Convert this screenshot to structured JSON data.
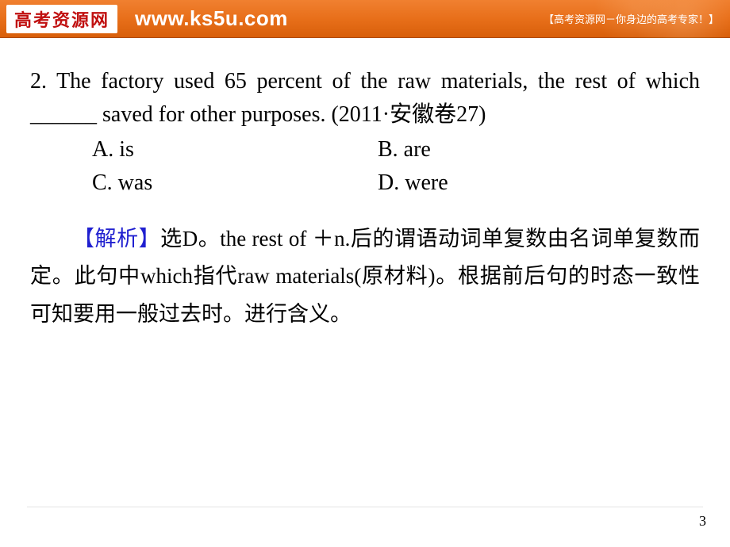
{
  "header": {
    "logo": "高考资源网",
    "url": "www.ks5u.com",
    "tagline": "【高考资源网－你身边的高考专家！】"
  },
  "question": {
    "stem": "2. The factory used 65 percent of the raw materials, the rest of which ______ saved for other purposes. (2011·安徽卷27)",
    "options": {
      "A": "A. is",
      "B": "B. are",
      "C": "C. was",
      "D": "D. were"
    }
  },
  "explanation": {
    "label": "【解析】",
    "body": "选D。the rest of ＋n.后的谓语动词单复数由名词单复数而定。此句中which指代raw materials(原材料)。根据前后句的时态一致性可知要用一般过去时。进行含义。"
  },
  "page_number": "3",
  "colors": {
    "header_bg": "#e86f1a",
    "logo_text": "#c01010",
    "url_text": "#ffffff",
    "body_text": "#000000",
    "analysis_label": "#2020d0",
    "background": "#ffffff"
  }
}
